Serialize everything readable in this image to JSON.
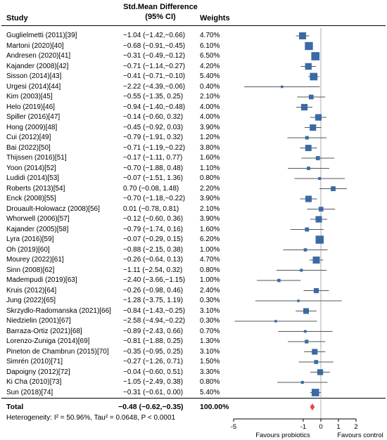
{
  "header": {
    "study": "Study",
    "smd_line1": "Std.Mean Difference",
    "smd_line2": "(95% CI)",
    "weights": "Weights"
  },
  "chart_data": {
    "type": "forest",
    "studies": [
      {
        "name": "Guglielmetti (2011)[39]",
        "smd": -1.04,
        "lo": -1.42,
        "hi": -0.66,
        "ci_text": "−1.04 (−1.42,−0.66)",
        "weight": 4.7,
        "weight_text": "4.70%"
      },
      {
        "name": "Martoni (2020)[40]",
        "smd": -0.68,
        "lo": -0.91,
        "hi": -0.45,
        "ci_text": "−0.68 (−0.91,−0.45)",
        "weight": 6.1,
        "weight_text": "6.10%"
      },
      {
        "name": "Andresen (2020)[41]",
        "smd": -0.31,
        "lo": -0.49,
        "hi": -0.12,
        "ci_text": "−0.31 (−0.49,−0.12)",
        "weight": 6.5,
        "weight_text": "6.50%"
      },
      {
        "name": "Kajander (2008)[42]",
        "smd": -0.71,
        "lo": -1.14,
        "hi": -0.27,
        "ci_text": "−0.71 (−1.14,−0.27)",
        "weight": 4.2,
        "weight_text": "4.20%"
      },
      {
        "name": "Sisson (2014)[43]",
        "smd": -0.41,
        "lo": -0.71,
        "hi": -0.1,
        "ci_text": "−0.41 (−0.71,−0.10)",
        "weight": 5.4,
        "weight_text": "5.40%"
      },
      {
        "name": "Urgesi (2014)[44]",
        "smd": -2.22,
        "lo": -4.39,
        "hi": -0.06,
        "ci_text": "−2.22 (−4.39,−0.06)",
        "weight": 0.4,
        "weight_text": "0.40%"
      },
      {
        "name": "Kim (2003)[45]",
        "smd": -0.55,
        "lo": -1.35,
        "hi": 0.25,
        "ci_text": "−0.55 (−1.35, 0.25)",
        "weight": 2.1,
        "weight_text": "2.10%"
      },
      {
        "name": "Helo (2019)[46]",
        "smd": -0.94,
        "lo": -1.4,
        "hi": -0.48,
        "ci_text": "−0.94 (−1.40,−0.48)",
        "weight": 4.0,
        "weight_text": "4.00%"
      },
      {
        "name": "Spiller (2016)[47]",
        "smd": -0.14,
        "lo": -0.6,
        "hi": 0.32,
        "ci_text": "−0.14 (−0.60, 0.32)",
        "weight": 4.0,
        "weight_text": "4.00%"
      },
      {
        "name": "Hong (2009)[48]",
        "smd": -0.45,
        "lo": -0.92,
        "hi": 0.03,
        "ci_text": "−0.45 (−0.92, 0.03)",
        "weight": 3.9,
        "weight_text": "3.90%"
      },
      {
        "name": "Cui (2012)[49]",
        "smd": -0.79,
        "lo": -1.91,
        "hi": 0.32,
        "ci_text": "−0.79 (−1.91, 0.32)",
        "weight": 1.2,
        "weight_text": "1.20%"
      },
      {
        "name": "Bai (2022)[50]",
        "smd": -0.71,
        "lo": -1.19,
        "hi": -0.22,
        "ci_text": "−0.71 (−1.19,−0.22)",
        "weight": 3.8,
        "weight_text": "3.80%"
      },
      {
        "name": "Thijssen (2016)[51]",
        "smd": -0.17,
        "lo": -1.11,
        "hi": 0.77,
        "ci_text": "−0.17 (−1.11, 0.77)",
        "weight": 1.6,
        "weight_text": "1.60%"
      },
      {
        "name": "Yoon (2014)[52]",
        "smd": -0.7,
        "lo": -1.88,
        "hi": 0.48,
        "ci_text": "−0.70 (−1.88, 0.48)",
        "weight": 1.1,
        "weight_text": "1.10%"
      },
      {
        "name": "Ludidi (2014)[53]",
        "smd": -0.07,
        "lo": -1.51,
        "hi": 1.36,
        "ci_text": "−0.07 (−1.51, 1.36)",
        "weight": 0.8,
        "weight_text": "0.80%"
      },
      {
        "name": "Roberts (2013)[54]",
        "smd": 0.7,
        "lo": -0.08,
        "hi": 1.48,
        "ci_text": "0.70 (−0.08, 1.48)",
        "weight": 2.2,
        "weight_text": "2.20%"
      },
      {
        "name": "Enck (2008)[55]",
        "smd": -0.7,
        "lo": -1.18,
        "hi": -0.22,
        "ci_text": "−0.70 (−1.18,−0.22)",
        "weight": 3.9,
        "weight_text": "3.90%"
      },
      {
        "name": "Drouault-Holowacz (2008)[56]",
        "smd": 0.01,
        "lo": -0.78,
        "hi": 0.81,
        "ci_text": "0.01 (−0.78, 0.81)",
        "weight": 2.1,
        "weight_text": "2.10%"
      },
      {
        "name": "Whorwell (2006)[57]",
        "smd": -0.12,
        "lo": -0.6,
        "hi": 0.36,
        "ci_text": "−0.12 (−0.60, 0.36)",
        "weight": 3.9,
        "weight_text": "3.90%"
      },
      {
        "name": "Kajander (2005)[58]",
        "smd": -0.79,
        "lo": -1.74,
        "hi": 0.16,
        "ci_text": "−0.79 (−1.74, 0.16)",
        "weight": 1.6,
        "weight_text": "1.60%"
      },
      {
        "name": "Lyra (2016)[59]",
        "smd": -0.07,
        "lo": -0.29,
        "hi": 0.15,
        "ci_text": "−0.07 (−0.29, 0.15)",
        "weight": 6.2,
        "weight_text": "6.20%"
      },
      {
        "name": "Oh (2019)[60]",
        "smd": -0.88,
        "lo": -2.15,
        "hi": 0.38,
        "ci_text": "−0.88 (−2.15, 0.38)",
        "weight": 1.0,
        "weight_text": "1.00%"
      },
      {
        "name": "Mourey (2022)[61]",
        "smd": -0.26,
        "lo": -0.64,
        "hi": 0.13,
        "ci_text": "−0.26 (−0.64, 0.13)",
        "weight": 4.7,
        "weight_text": "4.70%"
      },
      {
        "name": "Sinn (2008)[62]",
        "smd": -1.11,
        "lo": -2.54,
        "hi": 0.32,
        "ci_text": "−1.11 (−2.54, 0.32)",
        "weight": 0.8,
        "weight_text": "0.80%"
      },
      {
        "name": "Madempudi (2019)[63]",
        "smd": -2.4,
        "lo": -3.66,
        "hi": -1.15,
        "ci_text": "−2.40 (−3.66,−1.15)",
        "weight": 1.0,
        "weight_text": "1.00%"
      },
      {
        "name": "Kruis (2012)[64]",
        "smd": -0.26,
        "lo": -0.98,
        "hi": 0.46,
        "ci_text": "−0.26 (−0.98, 0.46)",
        "weight": 2.4,
        "weight_text": "2.40%"
      },
      {
        "name": "Jung (2022)[65]",
        "smd": -1.28,
        "lo": -3.75,
        "hi": 1.19,
        "ci_text": "−1.28 (−3.75, 1.19)",
        "weight": 0.3,
        "weight_text": "0.30%"
      },
      {
        "name": "Skrzydlo-Radomanska (2021)[66]",
        "smd": -0.84,
        "lo": -1.43,
        "hi": -0.25,
        "ci_text": "−0.84 (−1.43,−0.25)",
        "weight": 3.1,
        "weight_text": "3.10%"
      },
      {
        "name": "Niedzielin (2001)[67]",
        "smd": -2.58,
        "lo": -4.94,
        "hi": -0.22,
        "ci_text": "−2.58 (−4.94,−0.22)",
        "weight": 0.3,
        "weight_text": "0.30%"
      },
      {
        "name": "Barraza-Ortiz (2021)[68]",
        "smd": -0.89,
        "lo": -2.43,
        "hi": 0.66,
        "ci_text": "−0.89 (−2.43, 0.66)",
        "weight": 0.7,
        "weight_text": "0.70%"
      },
      {
        "name": "Lorenzo-Zuniga (2014)[69]",
        "smd": -0.81,
        "lo": -1.88,
        "hi": 0.25,
        "ci_text": "−0.81 (−1.88, 0.25)",
        "weight": 1.3,
        "weight_text": "1.30%"
      },
      {
        "name": "Pineton de Chambrun (2015)[70]",
        "smd": -0.35,
        "lo": -0.95,
        "hi": 0.25,
        "ci_text": "−0.35 (−0.95, 0.25)",
        "weight": 3.1,
        "weight_text": "3.10%"
      },
      {
        "name": "Simrén (2010)[71]",
        "smd": -0.27,
        "lo": -1.26,
        "hi": 0.71,
        "ci_text": "−0.27 (−1.26, 0.71)",
        "weight": 1.5,
        "weight_text": "1.50%"
      },
      {
        "name": "Dapoigny (2012)[72]",
        "smd": -0.04,
        "lo": -0.6,
        "hi": 0.51,
        "ci_text": "−0.04 (−0.60, 0.51)",
        "weight": 3.3,
        "weight_text": "3.30%"
      },
      {
        "name": "Ki Cha (2010)[73]",
        "smd": -1.05,
        "lo": -2.49,
        "hi": 0.38,
        "ci_text": "−1.05 (−2.49, 0.38)",
        "weight": 0.8,
        "weight_text": "0.80%"
      },
      {
        "name": "Sun (2018)[74]",
        "smd": -0.31,
        "lo": -0.61,
        "hi": 0.0,
        "ci_text": "−0.31 (−0.61, 0.00)",
        "weight": 5.4,
        "weight_text": "5.40%"
      }
    ],
    "total": {
      "label": "Total",
      "smd": -0.48,
      "lo": -0.62,
      "hi": -0.35,
      "ci_text": "−0.48 (−0.62,−0.35)",
      "weight_text": "100.00%"
    },
    "heterogeneity": "Heterogeneity: I² = 50.96%, Tau² = 0.0648, P < 0.0001",
    "x_ticks": [
      {
        "value": -5,
        "label": "-5"
      },
      {
        "value": -1,
        "label": "-1"
      },
      {
        "value": 0,
        "label": "0"
      },
      {
        "value": 1,
        "label": "1"
      },
      {
        "value": 2,
        "label": "2"
      }
    ],
    "xlim": [
      -5,
      2
    ],
    "favours_left": "Favours probiotics",
    "favours_right": "Favours control",
    "colors": {
      "box": "#3a6aa6",
      "line": "#555555",
      "diamond": "#e8474a",
      "zero_line": "#999999"
    }
  }
}
